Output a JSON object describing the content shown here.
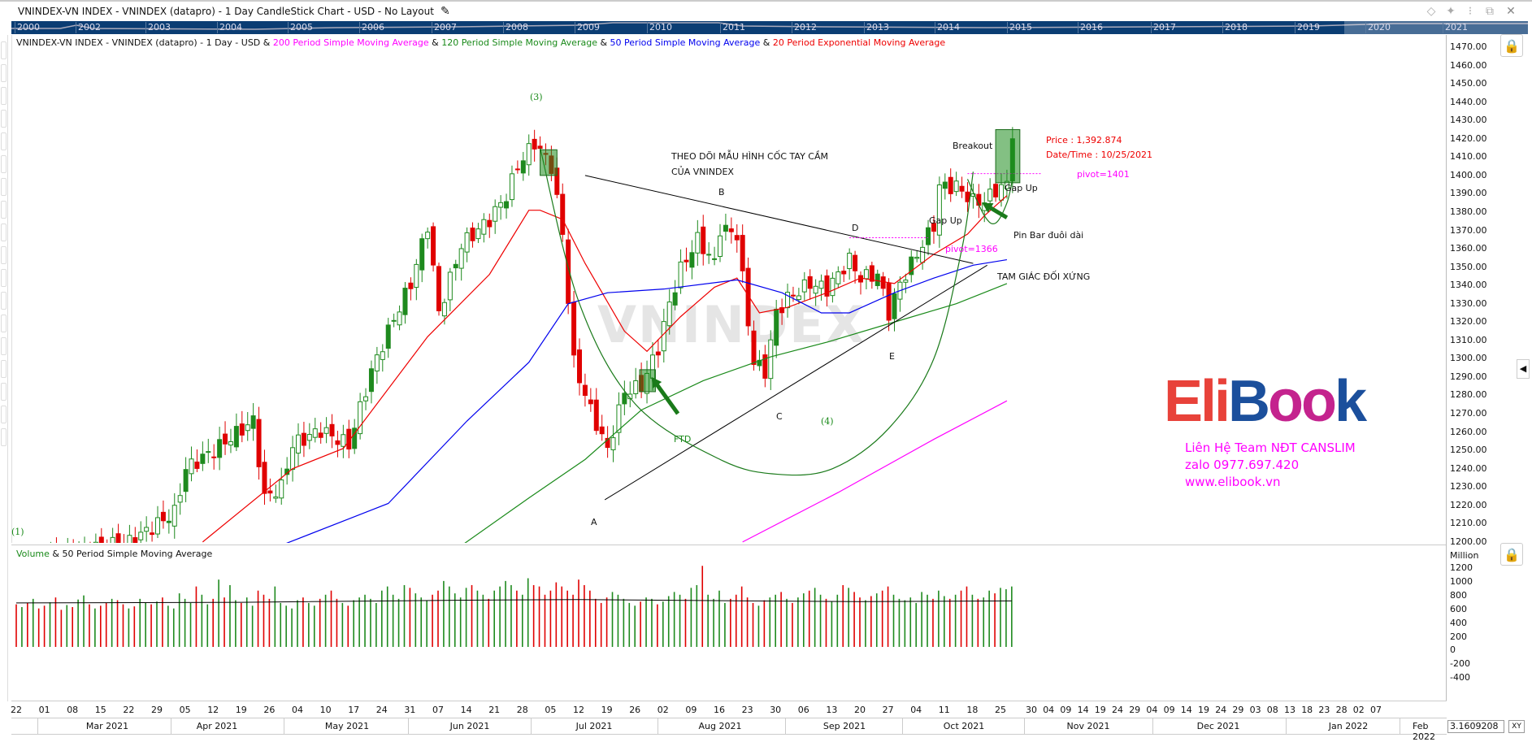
{
  "window": {
    "title": "VNINDEX-VN INDEX - VNINDEX (datapro) - 1 Day CandleStick Chart - USD - No Layout",
    "icons": [
      "diamond-icon",
      "pin-icon",
      "info-icon",
      "restore-icon",
      "close-icon"
    ]
  },
  "navigator": {
    "years": [
      "2000",
      "2002",
      "2003",
      "2004",
      "2005",
      "2006",
      "2007",
      "2008",
      "2009",
      "2010",
      "2011",
      "2012",
      "2013",
      "2014",
      "2015",
      "2016",
      "2017",
      "2018",
      "2019",
      "2020",
      "2021"
    ]
  },
  "legend": {
    "base": "VNINDEX-VN INDEX - VNINDEX (datapro) - 1 Day - USD & ",
    "sma200": "200 Period Simple Moving Average",
    "amp1": " & ",
    "sma120": "120 Period Simple Moving Average",
    "amp2": " & ",
    "sma50": "50 Period Simple Moving Average",
    "amp3": " & ",
    "ema20": "20 Period Exponential Moving Average"
  },
  "colors": {
    "up": "#1e8a1e",
    "down": "#e00000",
    "sma200": "#ff00ff",
    "sma120": "#1a8a1a",
    "sma50": "#0000ee",
    "ema20": "#ee0000",
    "nav": "#0b3d73"
  },
  "volume_panel": {
    "title_vol": "Volume",
    "title_rest": " & 50 Period Simple Moving Average",
    "unit": "Million",
    "ticks": [
      "1200",
      "1000",
      "800",
      "600",
      "400",
      "200",
      "0",
      "-200",
      "-400"
    ]
  },
  "price_axis": {
    "ticks": [
      "1470.00",
      "1460.00",
      "1450.00",
      "1440.00",
      "1430.00",
      "1420.00",
      "1410.00",
      "1400.00",
      "1390.00",
      "1380.00",
      "1370.00",
      "1360.00",
      "1350.00",
      "1340.00",
      "1330.00",
      "1320.00",
      "1310.00",
      "1300.00",
      "1290.00",
      "1280.00",
      "1270.00",
      "1260.00",
      "1250.00",
      "1240.00",
      "1230.00",
      "1220.00",
      "1210.00",
      "1200.00"
    ]
  },
  "date_axis": {
    "days": [
      "22",
      "01",
      "08",
      "15",
      "22",
      "29",
      "05",
      "12",
      "19",
      "26",
      "04",
      "10",
      "17",
      "24",
      "31",
      "07",
      "14",
      "21",
      "28",
      "05",
      "12",
      "19",
      "26",
      "02",
      "09",
      "16",
      "23",
      "30",
      "06",
      "13",
      "20",
      "27",
      "04",
      "11",
      "18",
      "25"
    ],
    "future_days": [
      "30",
      "04",
      "09",
      "14",
      "19",
      "24",
      "29",
      "04",
      "09",
      "14",
      "19",
      "24",
      "29",
      "03",
      "08",
      "13",
      "18",
      "23",
      "28",
      "02",
      "07"
    ],
    "months": [
      "Mar 2021",
      "Apr 2021",
      "May 2021",
      "Jun 2021",
      "Jul 2021",
      "Aug 2021",
      "Sep 2021",
      "Oct 2021",
      "Nov 2021",
      "Dec 2021",
      "Jan 2022",
      "Feb 2022"
    ],
    "readout": "3.1609208",
    "xy_label": "XY"
  },
  "annotations": {
    "wave3": "(3)",
    "wave1": "(1)",
    "wave4": "(4)",
    "A": "A",
    "B": "B",
    "C": "C",
    "D": "D",
    "E": "E",
    "ftd": "FTD",
    "theo1": "THEO DÕI MẪU HÌNH CỐC TAY CẦM",
    "theo2": "CỦA VNINDEX",
    "breakout": "Breakout",
    "price": "Price : 1,392.874",
    "datetime": "Date/Time : 10/25/2021",
    "pivot1401": "pivot=1401",
    "gapup1": "Gap Up",
    "gapup2": "Gap Up",
    "pinbar": "Pin Bar đuôi dài",
    "pivot1366": "pivot=1366",
    "triangle": "TAM GIÁC ĐỐI XỨNG",
    "watermark": "VNINDEX"
  },
  "logo": {
    "text_eli": "Eli",
    "text_b": "B",
    "text_oo": "oo",
    "text_k": "k",
    "line1": "Liên Hệ Team NĐT CANSLIM",
    "line2": "zalo 0977.697.420",
    "line3": "www.elibook.vn"
  },
  "chart_data": {
    "type": "candlestick",
    "title": "VNINDEX - 1 Day CandleStick Chart",
    "x_unit": "trading day index from 2021-02-22",
    "ylim": [
      1200,
      1475
    ],
    "last": {
      "price": 1392.874,
      "date": "10/25/2021"
    },
    "close_anchors": [
      [
        0,
        1190
      ],
      [
        20,
        1200
      ],
      [
        28,
        1216
      ],
      [
        30,
        1240
      ],
      [
        35,
        1250
      ],
      [
        42,
        1266
      ],
      [
        44,
        1224
      ],
      [
        47,
        1230
      ],
      [
        49,
        1253
      ],
      [
        54,
        1261
      ],
      [
        59,
        1253
      ],
      [
        63,
        1293
      ],
      [
        66,
        1315
      ],
      [
        70,
        1341
      ],
      [
        73,
        1373
      ],
      [
        75,
        1325
      ],
      [
        79,
        1362
      ],
      [
        84,
        1376
      ],
      [
        87,
        1389
      ],
      [
        89,
        1405
      ],
      [
        92,
        1418
      ],
      [
        95,
        1405
      ],
      [
        97,
        1368
      ],
      [
        99,
        1298
      ],
      [
        102,
        1272
      ],
      [
        105,
        1250
      ],
      [
        108,
        1282
      ],
      [
        111,
        1285
      ],
      [
        114,
        1306
      ],
      [
        116,
        1330
      ],
      [
        118,
        1349
      ],
      [
        121,
        1365
      ],
      [
        124,
        1352
      ],
      [
        125,
        1371
      ],
      [
        128,
        1368
      ],
      [
        130,
        1320
      ],
      [
        131,
        1298
      ],
      [
        133,
        1293
      ],
      [
        135,
        1325
      ],
      [
        137,
        1333
      ],
      [
        141,
        1341
      ],
      [
        144,
        1338
      ],
      [
        148,
        1354
      ],
      [
        150,
        1344
      ],
      [
        153,
        1346
      ],
      [
        155,
        1325
      ],
      [
        157,
        1341
      ],
      [
        160,
        1357
      ],
      [
        163,
        1373
      ],
      [
        164,
        1394
      ],
      [
        167,
        1394
      ],
      [
        170,
        1386
      ],
      [
        172,
        1386
      ],
      [
        174,
        1392
      ],
      [
        176,
        1395
      ],
      [
        177,
        1420
      ]
    ],
    "series": [
      {
        "name": "20 Period Exponential Moving Average",
        "key": "ema20",
        "points": [
          [
            33,
            1200
          ],
          [
            49,
            1240
          ],
          [
            58,
            1251
          ],
          [
            73,
            1312
          ],
          [
            84,
            1346
          ],
          [
            91,
            1381
          ],
          [
            93,
            1381
          ],
          [
            97,
            1376
          ],
          [
            101,
            1352
          ],
          [
            108,
            1315
          ],
          [
            112,
            1304
          ],
          [
            118,
            1323
          ],
          [
            124,
            1339
          ],
          [
            128,
            1344
          ],
          [
            132,
            1325
          ],
          [
            137,
            1328
          ],
          [
            144,
            1336
          ],
          [
            150,
            1344
          ],
          [
            156,
            1341
          ],
          [
            163,
            1357
          ],
          [
            169,
            1368
          ],
          [
            172,
            1378
          ],
          [
            176,
            1389
          ]
        ]
      },
      {
        "name": "50 Period Simple Moving Average",
        "key": "sma50",
        "points": [
          [
            46,
            1197
          ],
          [
            66,
            1221
          ],
          [
            80,
            1266
          ],
          [
            91,
            1298
          ],
          [
            98,
            1330
          ],
          [
            105,
            1336
          ],
          [
            115,
            1338
          ],
          [
            128,
            1343
          ],
          [
            136,
            1336
          ],
          [
            143,
            1325
          ],
          [
            148,
            1325
          ],
          [
            156,
            1336
          ],
          [
            163,
            1344
          ],
          [
            170,
            1351
          ],
          [
            176,
            1354
          ]
        ]
      },
      {
        "name": "120 Period Simple Moving Average",
        "key": "sma120",
        "points": [
          [
            79,
            1198
          ],
          [
            91,
            1224
          ],
          [
            101,
            1245
          ],
          [
            111,
            1272
          ],
          [
            122,
            1288
          ],
          [
            134,
            1301
          ],
          [
            144,
            1309
          ],
          [
            156,
            1320
          ],
          [
            167,
            1330
          ],
          [
            176,
            1341
          ]
        ]
      },
      {
        "name": "200 Period Simple Moving Average",
        "key": "sma200",
        "points": [
          [
            129,
            1200
          ],
          [
            146,
            1227
          ],
          [
            163,
            1256
          ],
          [
            176,
            1277
          ]
        ]
      }
    ],
    "volume": [
      620,
      580,
      640,
      700,
      560,
      600,
      650,
      720,
      540,
      610,
      580,
      690,
      750,
      620,
      560,
      600,
      640,
      700,
      680,
      620,
      560,
      590,
      700,
      640,
      620,
      660,
      720,
      600,
      560,
      780,
      700,
      640,
      880,
      760,
      620,
      700,
      980,
      720,
      900,
      680,
      640,
      720,
      600,
      820,
      760,
      700,
      880,
      640,
      600,
      560,
      680,
      720,
      640,
      600,
      700,
      760,
      820,
      700,
      640,
      600,
      680,
      720,
      760,
      700,
      640,
      820,
      880,
      760,
      700,
      900,
      860,
      780,
      720,
      680,
      760,
      820,
      960,
      880,
      780,
      720,
      860,
      900,
      820,
      760,
      700,
      820,
      880,
      960,
      900,
      820,
      760,
      1000,
      900,
      880,
      760,
      820,
      940,
      880,
      820,
      760,
      980,
      900,
      820,
      700,
      640,
      720,
      800,
      760,
      700,
      640,
      600,
      660,
      720,
      700,
      620,
      660,
      740,
      800,
      760,
      700,
      860,
      900,
      1180,
      760,
      700,
      820,
      640,
      700,
      760,
      880,
      720,
      640,
      600,
      680,
      720,
      760,
      800,
      700,
      640,
      720,
      780,
      820,
      860,
      760,
      700,
      660,
      760,
      900,
      860,
      800,
      720,
      680,
      740,
      780,
      820,
      880,
      760,
      700,
      680,
      720,
      640,
      800,
      760,
      700,
      820,
      740,
      700,
      760,
      820,
      880,
      760,
      700,
      720,
      820,
      780,
      860,
      840,
      880
    ],
    "volume_sma50": [
      [
        0,
        640
      ],
      [
        40,
        650
      ],
      [
        80,
        680
      ],
      [
        100,
        690
      ],
      [
        130,
        670
      ],
      [
        150,
        660
      ],
      [
        177,
        670
      ]
    ],
    "drawings": {
      "trendline_upper": [
        [
          101,
          1400
        ],
        [
          170,
          1352
        ]
      ],
      "trendline_lower": [
        [
          104.5,
          1223
        ],
        [
          172.5,
          1351
        ]
      ],
      "pivot_1366": [
        [
          148,
          1366
        ],
        [
          162,
          1366
        ]
      ],
      "pivot_1401": [
        [
          169,
          1401
        ],
        [
          182,
          1401
        ]
      ],
      "cup": [
        [
          93,
          1415
        ],
        [
          100,
          1330
        ],
        [
          110,
          1275
        ],
        [
          125,
          1245
        ],
        [
          135,
          1237
        ],
        [
          145,
          1240
        ],
        [
          155,
          1262
        ],
        [
          163,
          1300
        ],
        [
          168,
          1360
        ],
        [
          170,
          1402
        ]
      ],
      "handle": [
        [
          169,
          1398
        ],
        [
          172,
          1378
        ],
        [
          174,
          1374
        ],
        [
          176,
          1385
        ],
        [
          177,
          1398
        ]
      ],
      "boxes": [
        [
          93,
          96,
          1414,
          1400
        ],
        [
          110.7,
          113.5,
          1294,
          1282
        ],
        [
          174,
          178.3,
          1425,
          1396
        ]
      ],
      "arrows": [
        [
          [
            117.5,
            1270
          ],
          [
            112.8,
            1290
          ]
        ],
        [
          [
            176,
            1377
          ],
          [
            171.6,
            1385
          ]
        ]
      ]
    }
  }
}
